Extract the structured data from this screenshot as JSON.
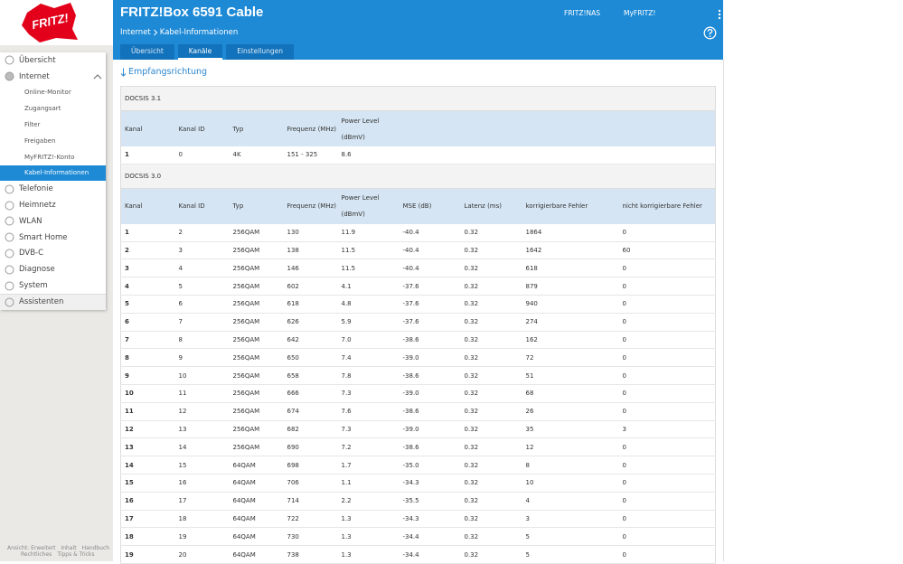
{
  "header": {
    "logo": "FRITZ!",
    "title": "FRITZ!Box 6591 Cable",
    "links": [
      "FRITZ!NAS",
      "MyFRITZ!"
    ]
  },
  "breadcrumb": [
    "Internet",
    "Kabel-Informationen"
  ],
  "tabs": [
    {
      "label": "Übersicht",
      "active": false
    },
    {
      "label": "Kanäle",
      "active": true
    },
    {
      "label": "Einstellungen",
      "active": false
    }
  ],
  "sidebar": [
    {
      "label": "Übersicht",
      "level": 1,
      "selected": false
    },
    {
      "label": "Internet",
      "level": 1,
      "selected": false,
      "expanded": true
    },
    {
      "label": "Online-Monitor",
      "level": 2,
      "selected": false
    },
    {
      "label": "Zugangsart",
      "level": 2,
      "selected": false
    },
    {
      "label": "Filter",
      "level": 2,
      "selected": false
    },
    {
      "label": "Freigaben",
      "level": 2,
      "selected": false
    },
    {
      "label": "MyFRITZ!-Konto",
      "level": 2,
      "selected": false
    },
    {
      "label": "Kabel-Informationen",
      "level": 2,
      "selected": true
    },
    {
      "label": "Telefonie",
      "level": 1,
      "selected": false
    },
    {
      "label": "Heimnetz",
      "level": 1,
      "selected": false
    },
    {
      "label": "WLAN",
      "level": 1,
      "selected": false
    },
    {
      "label": "Smart Home",
      "level": 1,
      "selected": false
    },
    {
      "label": "DVB-C",
      "level": 1,
      "selected": false
    },
    {
      "label": "Diagnose",
      "level": 1,
      "selected": false
    },
    {
      "label": "System",
      "level": 1,
      "selected": false
    },
    {
      "label": "Assistenten",
      "level": 1,
      "selected": false
    }
  ],
  "footer": [
    [
      "Ansicht: Erweitert",
      "Inhalt",
      "Handbuch"
    ],
    [
      "Rechtliches",
      "Tipps & Tricks"
    ]
  ],
  "section_title": "Empfangsrichtung",
  "tables": [
    {
      "title": "DOCSIS 3.1",
      "columns": [
        "Kanal",
        "Kanal ID",
        "Typ",
        "Frequenz (MHz)",
        "Power Level (dBmV)"
      ],
      "rows": [
        [
          "1",
          "0",
          "4K",
          "151 - 325",
          "8.6"
        ]
      ]
    },
    {
      "title": "DOCSIS 3.0",
      "columns": [
        "Kanal",
        "Kanal ID",
        "Typ",
        "Frequenz (MHz)",
        "Power Level (dBmV)",
        "MSE (dB)",
        "Latenz (ms)",
        "korrigierbare Fehler",
        "nicht korrigierbare Fehler"
      ],
      "rows": [
        [
          "1",
          "2",
          "256QAM",
          "130",
          "11.9",
          "-40.4",
          "0.32",
          "1864",
          "0"
        ],
        [
          "2",
          "3",
          "256QAM",
          "138",
          "11.5",
          "-40.4",
          "0.32",
          "1642",
          "60"
        ],
        [
          "3",
          "4",
          "256QAM",
          "146",
          "11.5",
          "-40.4",
          "0.32",
          "618",
          "0"
        ],
        [
          "4",
          "5",
          "256QAM",
          "602",
          "4.1",
          "-37.6",
          "0.32",
          "879",
          "0"
        ],
        [
          "5",
          "6",
          "256QAM",
          "618",
          "4.8",
          "-37.6",
          "0.32",
          "940",
          "0"
        ],
        [
          "6",
          "7",
          "256QAM",
          "626",
          "5.9",
          "-37.6",
          "0.32",
          "274",
          "0"
        ],
        [
          "7",
          "8",
          "256QAM",
          "642",
          "7.0",
          "-38.6",
          "0.32",
          "162",
          "0"
        ],
        [
          "8",
          "9",
          "256QAM",
          "650",
          "7.4",
          "-39.0",
          "0.32",
          "72",
          "0"
        ],
        [
          "9",
          "10",
          "256QAM",
          "658",
          "7.8",
          "-38.6",
          "0.32",
          "51",
          "0"
        ],
        [
          "10",
          "11",
          "256QAM",
          "666",
          "7.3",
          "-39.0",
          "0.32",
          "68",
          "0"
        ],
        [
          "11",
          "12",
          "256QAM",
          "674",
          "7.6",
          "-38.6",
          "0.32",
          "26",
          "0"
        ],
        [
          "12",
          "13",
          "256QAM",
          "682",
          "7.3",
          "-39.0",
          "0.32",
          "35",
          "3"
        ],
        [
          "13",
          "14",
          "256QAM",
          "690",
          "7.2",
          "-38.6",
          "0.32",
          "12",
          "0"
        ],
        [
          "14",
          "15",
          "64QAM",
          "698",
          "1.7",
          "-35.0",
          "0.32",
          "8",
          "0"
        ],
        [
          "15",
          "16",
          "64QAM",
          "706",
          "1.1",
          "-34.3",
          "0.32",
          "10",
          "0"
        ],
        [
          "16",
          "17",
          "64QAM",
          "714",
          "2.2",
          "-35.5",
          "0.32",
          "4",
          "0"
        ],
        [
          "17",
          "18",
          "64QAM",
          "722",
          "1.3",
          "-34.3",
          "0.32",
          "3",
          "0"
        ],
        [
          "18",
          "19",
          "64QAM",
          "730",
          "1.3",
          "-34.4",
          "0.32",
          "5",
          "0"
        ],
        [
          "19",
          "20",
          "64QAM",
          "738",
          "1.3",
          "-34.4",
          "0.32",
          "5",
          "0"
        ]
      ]
    }
  ]
}
